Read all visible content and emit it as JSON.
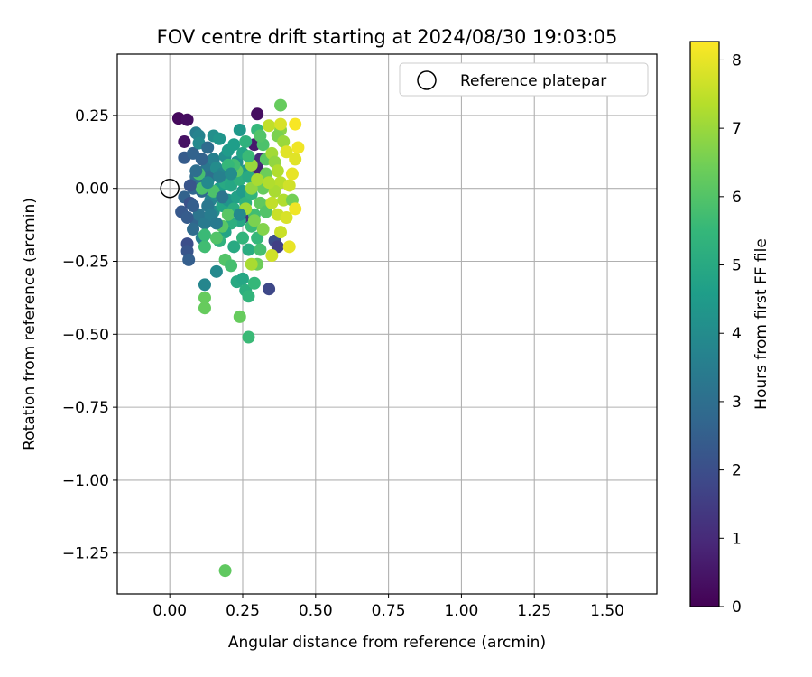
{
  "chart_data": {
    "type": "scatter",
    "title": "FOV centre drift starting at 2024/08/30 19:03:05",
    "xlabel": "Angular distance from reference (arcmin)",
    "ylabel": "Rotation from reference (arcmin)",
    "colorbar_label": "Hours from first FF file",
    "xlim": [
      -0.18,
      1.67
    ],
    "ylim": [
      -1.39,
      0.46
    ],
    "xticks": [
      "0.00",
      "0.25",
      "0.50",
      "0.75",
      "1.00",
      "1.25",
      "1.50"
    ],
    "xtick_values": [
      0,
      0.25,
      0.5,
      0.75,
      1.0,
      1.25,
      1.5
    ],
    "yticks": [
      "0.25",
      "0.00",
      "−0.25",
      "−0.50",
      "−0.75",
      "−1.00",
      "−1.25"
    ],
    "ytick_values": [
      0.25,
      0,
      -0.25,
      -0.5,
      -0.75,
      -1.0,
      -1.25
    ],
    "colorbar_range": [
      0,
      8.27
    ],
    "colorbar_ticks": [
      "0",
      "1",
      "2",
      "3",
      "4",
      "5",
      "6",
      "7",
      "8"
    ],
    "colorbar_tick_values": [
      0,
      1,
      2,
      3,
      4,
      5,
      6,
      7,
      8
    ],
    "colormap": [
      "#440154",
      "#482878",
      "#3e4989",
      "#31688e",
      "#26828e",
      "#1f9e89",
      "#35b779",
      "#6ece58",
      "#b5de2b",
      "#fde725"
    ],
    "grid": true,
    "legend": {
      "position": "top-right",
      "entries": [
        "Reference platepar"
      ]
    },
    "reference_point": {
      "x": 0.0,
      "y": 0.0
    },
    "points": [
      {
        "x": 0.03,
        "y": 0.24,
        "h": 0.2
      },
      {
        "x": 0.06,
        "y": 0.235,
        "h": 0.3
      },
      {
        "x": 0.05,
        "y": 0.16,
        "h": 0.4
      },
      {
        "x": 0.3,
        "y": 0.255,
        "h": 0.3
      },
      {
        "x": 0.29,
        "y": 0.15,
        "h": 0.6
      },
      {
        "x": 0.3,
        "y": 0.07,
        "h": 0.8
      },
      {
        "x": 0.31,
        "y": 0.1,
        "h": 1.0
      },
      {
        "x": 0.27,
        "y": -0.1,
        "h": 1.2
      },
      {
        "x": 0.34,
        "y": -0.345,
        "h": 1.8
      },
      {
        "x": 0.36,
        "y": -0.18,
        "h": 2.0
      },
      {
        "x": 0.37,
        "y": -0.2,
        "h": 1.6
      },
      {
        "x": 0.06,
        "y": -0.19,
        "h": 2.0
      },
      {
        "x": 0.06,
        "y": -0.215,
        "h": 2.2
      },
      {
        "x": 0.065,
        "y": -0.245,
        "h": 2.5
      },
      {
        "x": 0.05,
        "y": 0.105,
        "h": 2.4
      },
      {
        "x": 0.08,
        "y": 0.12,
        "h": 2.6
      },
      {
        "x": 0.04,
        "y": -0.08,
        "h": 2.3
      },
      {
        "x": 0.05,
        "y": -0.03,
        "h": 2.6
      },
      {
        "x": 0.07,
        "y": -0.05,
        "h": 2.1
      },
      {
        "x": 0.08,
        "y": 0.0,
        "h": 2.7
      },
      {
        "x": 0.09,
        "y": 0.04,
        "h": 2.9
      },
      {
        "x": 0.1,
        "y": 0.02,
        "h": 3.0
      },
      {
        "x": 0.11,
        "y": -0.01,
        "h": 2.8
      },
      {
        "x": 0.12,
        "y": 0.06,
        "h": 3.1
      },
      {
        "x": 0.13,
        "y": 0.08,
        "h": 3.3
      },
      {
        "x": 0.14,
        "y": 0.04,
        "h": 3.0
      },
      {
        "x": 0.09,
        "y": -0.11,
        "h": 2.7
      },
      {
        "x": 0.08,
        "y": -0.14,
        "h": 2.9
      },
      {
        "x": 0.1,
        "y": -0.09,
        "h": 3.2
      },
      {
        "x": 0.12,
        "y": -0.12,
        "h": 3.4
      },
      {
        "x": 0.11,
        "y": -0.17,
        "h": 3.6
      },
      {
        "x": 0.09,
        "y": 0.19,
        "h": 3.5
      },
      {
        "x": 0.1,
        "y": 0.18,
        "h": 3.7
      },
      {
        "x": 0.1,
        "y": 0.155,
        "h": 3.9
      },
      {
        "x": 0.12,
        "y": -0.33,
        "h": 3.8
      },
      {
        "x": 0.16,
        "y": -0.285,
        "h": 3.9
      },
      {
        "x": 0.15,
        "y": 0.18,
        "h": 4.1
      },
      {
        "x": 0.17,
        "y": 0.17,
        "h": 4.3
      },
      {
        "x": 0.24,
        "y": 0.2,
        "h": 4.4
      },
      {
        "x": 0.15,
        "y": 0.1,
        "h": 3.6
      },
      {
        "x": 0.16,
        "y": 0.07,
        "h": 4.0
      },
      {
        "x": 0.18,
        "y": 0.05,
        "h": 3.8
      },
      {
        "x": 0.19,
        "y": 0.11,
        "h": 4.1
      },
      {
        "x": 0.2,
        "y": 0.13,
        "h": 4.5
      },
      {
        "x": 0.22,
        "y": 0.15,
        "h": 4.6
      },
      {
        "x": 0.23,
        "y": 0.09,
        "h": 4.2
      },
      {
        "x": 0.25,
        "y": 0.12,
        "h": 4.8
      },
      {
        "x": 0.26,
        "y": 0.06,
        "h": 4.4
      },
      {
        "x": 0.14,
        "y": -0.04,
        "h": 3.7
      },
      {
        "x": 0.15,
        "y": -0.08,
        "h": 4.0
      },
      {
        "x": 0.16,
        "y": -0.02,
        "h": 4.2
      },
      {
        "x": 0.17,
        "y": 0.0,
        "h": 4.6
      },
      {
        "x": 0.18,
        "y": -0.06,
        "h": 4.8
      },
      {
        "x": 0.19,
        "y": 0.02,
        "h": 5.0
      },
      {
        "x": 0.2,
        "y": -0.04,
        "h": 4.3
      },
      {
        "x": 0.21,
        "y": 0.01,
        "h": 4.9
      },
      {
        "x": 0.22,
        "y": -0.07,
        "h": 5.1
      },
      {
        "x": 0.23,
        "y": -0.03,
        "h": 4.7
      },
      {
        "x": 0.24,
        "y": 0.03,
        "h": 5.2
      },
      {
        "x": 0.25,
        "y": -0.01,
        "h": 4.5
      },
      {
        "x": 0.26,
        "y": -0.05,
        "h": 5.3
      },
      {
        "x": 0.27,
        "y": 0.04,
        "h": 5.0
      },
      {
        "x": 0.28,
        "y": -0.02,
        "h": 5.4
      },
      {
        "x": 0.24,
        "y": -0.11,
        "h": 4.9
      },
      {
        "x": 0.21,
        "y": -0.12,
        "h": 5.2
      },
      {
        "x": 0.19,
        "y": -0.15,
        "h": 4.8
      },
      {
        "x": 0.17,
        "y": -0.18,
        "h": 5.3
      },
      {
        "x": 0.22,
        "y": -0.2,
        "h": 5.0
      },
      {
        "x": 0.25,
        "y": -0.17,
        "h": 5.4
      },
      {
        "x": 0.27,
        "y": -0.21,
        "h": 5.1
      },
      {
        "x": 0.28,
        "y": -0.13,
        "h": 5.6
      },
      {
        "x": 0.29,
        "y": -0.09,
        "h": 5.7
      },
      {
        "x": 0.3,
        "y": -0.17,
        "h": 5.5
      },
      {
        "x": 0.31,
        "y": -0.21,
        "h": 5.8
      },
      {
        "x": 0.23,
        "y": -0.32,
        "h": 5.0
      },
      {
        "x": 0.25,
        "y": -0.31,
        "h": 4.9
      },
      {
        "x": 0.26,
        "y": -0.35,
        "h": 5.2
      },
      {
        "x": 0.27,
        "y": -0.37,
        "h": 5.4
      },
      {
        "x": 0.29,
        "y": -0.325,
        "h": 5.5
      },
      {
        "x": 0.27,
        "y": -0.51,
        "h": 5.6
      },
      {
        "x": 0.24,
        "y": -0.44,
        "h": 6.3
      },
      {
        "x": 0.19,
        "y": -1.31,
        "h": 6.2
      },
      {
        "x": 0.12,
        "y": -0.375,
        "h": 6.3
      },
      {
        "x": 0.12,
        "y": -0.41,
        "h": 6.3
      },
      {
        "x": 0.19,
        "y": -0.245,
        "h": 6.0
      },
      {
        "x": 0.21,
        "y": -0.265,
        "h": 5.8
      },
      {
        "x": 0.12,
        "y": -0.2,
        "h": 5.7
      },
      {
        "x": 0.12,
        "y": -0.16,
        "h": 5.6
      },
      {
        "x": 0.16,
        "y": -0.17,
        "h": 6.0
      },
      {
        "x": 0.18,
        "y": -0.13,
        "h": 6.1
      },
      {
        "x": 0.11,
        "y": 0.0,
        "h": 5.9
      },
      {
        "x": 0.1,
        "y": 0.05,
        "h": 5.8
      },
      {
        "x": 0.3,
        "y": 0.2,
        "h": 5.5
      },
      {
        "x": 0.32,
        "y": 0.15,
        "h": 5.9
      },
      {
        "x": 0.33,
        "y": 0.1,
        "h": 6.1
      },
      {
        "x": 0.33,
        "y": 0.05,
        "h": 6.4
      },
      {
        "x": 0.32,
        "y": 0.0,
        "h": 6.3
      },
      {
        "x": 0.31,
        "y": -0.05,
        "h": 6.2
      },
      {
        "x": 0.33,
        "y": -0.08,
        "h": 6.0
      },
      {
        "x": 0.29,
        "y": -0.11,
        "h": 6.6
      },
      {
        "x": 0.3,
        "y": -0.26,
        "h": 6.4
      },
      {
        "x": 0.28,
        "y": -0.26,
        "h": 7.2
      },
      {
        "x": 0.32,
        "y": -0.14,
        "h": 6.7
      },
      {
        "x": 0.38,
        "y": 0.285,
        "h": 6.3
      },
      {
        "x": 0.38,
        "y": 0.2,
        "h": 6.8
      },
      {
        "x": 0.37,
        "y": 0.18,
        "h": 6.6
      },
      {
        "x": 0.39,
        "y": 0.16,
        "h": 7.0
      },
      {
        "x": 0.35,
        "y": 0.12,
        "h": 7.1
      },
      {
        "x": 0.36,
        "y": 0.09,
        "h": 6.9
      },
      {
        "x": 0.37,
        "y": 0.06,
        "h": 7.3
      },
      {
        "x": 0.38,
        "y": 0.02,
        "h": 7.4
      },
      {
        "x": 0.36,
        "y": -0.01,
        "h": 7.2
      },
      {
        "x": 0.35,
        "y": -0.05,
        "h": 7.5
      },
      {
        "x": 0.37,
        "y": -0.09,
        "h": 7.6
      },
      {
        "x": 0.39,
        "y": -0.04,
        "h": 7.3
      },
      {
        "x": 0.41,
        "y": 0.01,
        "h": 7.7
      },
      {
        "x": 0.42,
        "y": -0.04,
        "h": 6.5
      },
      {
        "x": 0.4,
        "y": -0.1,
        "h": 7.8
      },
      {
        "x": 0.38,
        "y": -0.15,
        "h": 7.6
      },
      {
        "x": 0.35,
        "y": -0.23,
        "h": 7.7
      },
      {
        "x": 0.41,
        "y": -0.2,
        "h": 8.0
      },
      {
        "x": 0.43,
        "y": -0.07,
        "h": 8.1
      },
      {
        "x": 0.42,
        "y": 0.05,
        "h": 8.0
      },
      {
        "x": 0.43,
        "y": 0.1,
        "h": 7.9
      },
      {
        "x": 0.44,
        "y": 0.14,
        "h": 8.1
      },
      {
        "x": 0.43,
        "y": 0.22,
        "h": 8.2
      },
      {
        "x": 0.4,
        "y": 0.125,
        "h": 7.9
      },
      {
        "x": 0.34,
        "y": 0.215,
        "h": 7.5
      },
      {
        "x": 0.38,
        "y": 0.22,
        "h": 7.8
      },
      {
        "x": 0.28,
        "y": 0.08,
        "h": 7.0
      },
      {
        "x": 0.26,
        "y": -0.07,
        "h": 7.1
      },
      {
        "x": 0.28,
        "y": 0.0,
        "h": 6.9
      },
      {
        "x": 0.3,
        "y": 0.03,
        "h": 7.2
      },
      {
        "x": 0.34,
        "y": 0.02,
        "h": 7.3
      },
      {
        "x": 0.31,
        "y": 0.18,
        "h": 6.0
      },
      {
        "x": 0.23,
        "y": 0.06,
        "h": 6.2
      },
      {
        "x": 0.2,
        "y": -0.09,
        "h": 6.1
      },
      {
        "x": 0.15,
        "y": -0.01,
        "h": 5.9
      },
      {
        "x": 0.22,
        "y": 0.08,
        "h": 5.7
      },
      {
        "x": 0.2,
        "y": 0.08,
        "h": 5.5
      },
      {
        "x": 0.26,
        "y": 0.16,
        "h": 5.3
      },
      {
        "x": 0.27,
        "y": 0.11,
        "h": 5.6
      },
      {
        "x": 0.13,
        "y": -0.06,
        "h": 3.3
      },
      {
        "x": 0.14,
        "y": -0.09,
        "h": 3.5
      },
      {
        "x": 0.09,
        "y": 0.06,
        "h": 3.0
      },
      {
        "x": 0.08,
        "y": -0.06,
        "h": 2.5
      },
      {
        "x": 0.17,
        "y": 0.04,
        "h": 3.6
      },
      {
        "x": 0.13,
        "y": 0.02,
        "h": 3.9
      },
      {
        "x": 0.18,
        "y": -0.03,
        "h": 3.2
      },
      {
        "x": 0.21,
        "y": 0.05,
        "h": 4.0
      },
      {
        "x": 0.24,
        "y": -0.09,
        "h": 3.9
      },
      {
        "x": 0.16,
        "y": -0.12,
        "h": 3.4
      },
      {
        "x": 0.07,
        "y": 0.01,
        "h": 2.2
      },
      {
        "x": 0.11,
        "y": 0.1,
        "h": 2.6
      },
      {
        "x": 0.13,
        "y": 0.14,
        "h": 2.9
      },
      {
        "x": 0.06,
        "y": -0.1,
        "h": 2.4
      }
    ]
  }
}
